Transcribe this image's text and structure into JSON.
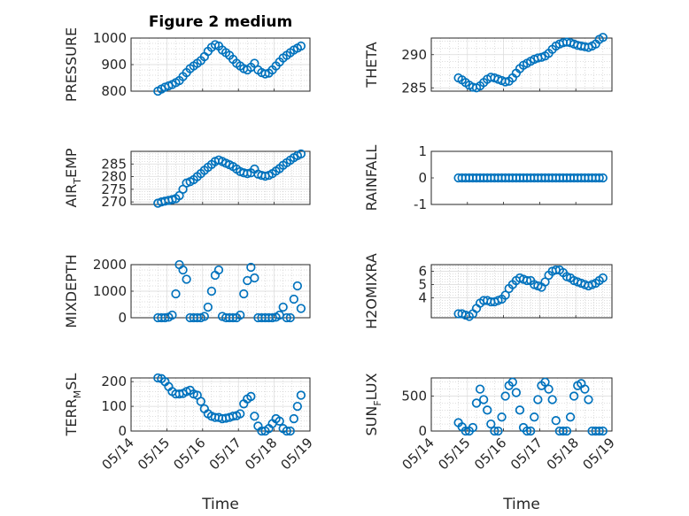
{
  "figure": {
    "title": "Figure 2 medium",
    "xlabel": "Time",
    "marker_color": "#0072BD"
  },
  "chart_data": [
    {
      "id": "pressure",
      "type": "scatter",
      "title": "Figure 2 medium",
      "ylabel": "PRESSURE",
      "xlabel": "",
      "ylim": [
        800,
        1000
      ],
      "yticks": [
        800,
        900,
        1000
      ],
      "xlim": [
        "05/14",
        "05/19"
      ],
      "xticks": [
        "05/14",
        "05/15",
        "05/16",
        "05/17",
        "05/18",
        "05/19"
      ],
      "show_xtick_labels": false,
      "grid": true,
      "x": [
        14.75,
        14.85,
        14.95,
        15.05,
        15.15,
        15.25,
        15.35,
        15.45,
        15.55,
        15.65,
        15.75,
        15.85,
        15.95,
        16.05,
        16.15,
        16.25,
        16.35,
        16.45,
        16.55,
        16.65,
        16.75,
        16.85,
        16.95,
        17.05,
        17.15,
        17.25,
        17.35,
        17.45,
        17.55,
        17.65,
        17.75,
        17.85,
        17.95,
        18.05,
        18.15,
        18.25,
        18.35,
        18.45,
        18.55,
        18.65,
        18.75
      ],
      "y": [
        800,
        808,
        815,
        820,
        825,
        832,
        840,
        855,
        870,
        885,
        895,
        905,
        915,
        930,
        950,
        965,
        975,
        970,
        955,
        945,
        935,
        920,
        905,
        895,
        885,
        880,
        890,
        905,
        880,
        870,
        865,
        868,
        880,
        895,
        910,
        925,
        935,
        945,
        955,
        962,
        970
      ]
    },
    {
      "id": "theta",
      "type": "scatter",
      "ylabel": "THETA",
      "xlabel": "",
      "ylim": [
        284.5,
        292.5
      ],
      "yticks": [
        285,
        290
      ],
      "xlim": [
        "05/14",
        "05/19"
      ],
      "xticks": [
        "05/14",
        "05/15",
        "05/16",
        "05/17",
        "05/18",
        "05/19"
      ],
      "show_xtick_labels": false,
      "grid": true,
      "x": [
        14.75,
        14.85,
        14.95,
        15.05,
        15.15,
        15.25,
        15.35,
        15.45,
        15.55,
        15.65,
        15.75,
        15.85,
        15.95,
        16.05,
        16.15,
        16.25,
        16.35,
        16.45,
        16.55,
        16.65,
        16.75,
        16.85,
        16.95,
        17.05,
        17.15,
        17.25,
        17.35,
        17.45,
        17.55,
        17.65,
        17.75,
        17.85,
        17.95,
        18.05,
        18.15,
        18.25,
        18.35,
        18.45,
        18.55,
        18.65,
        18.75
      ],
      "y": [
        286.5,
        286.2,
        285.8,
        285.4,
        285.1,
        285.0,
        285.3,
        285.8,
        286.3,
        286.6,
        286.5,
        286.3,
        286.1,
        285.9,
        286.0,
        286.5,
        287.2,
        287.9,
        288.4,
        288.7,
        289.0,
        289.3,
        289.5,
        289.6,
        289.8,
        290.2,
        290.8,
        291.3,
        291.6,
        291.8,
        291.9,
        291.8,
        291.6,
        291.4,
        291.3,
        291.2,
        291.1,
        291.3,
        291.6,
        292.3,
        292.6
      ]
    },
    {
      "id": "airtemp",
      "type": "scatter",
      "ylabel": "AIR_TEMP",
      "ylabel_main": "AIR",
      "ylabel_sub": "T",
      "ylabel_rest": "EMP",
      "xlabel": "",
      "ylim": [
        269,
        290
      ],
      "yticks": [
        270,
        275,
        280,
        285
      ],
      "xlim": [
        "05/14",
        "05/19"
      ],
      "xticks": [
        "05/14",
        "05/15",
        "05/16",
        "05/17",
        "05/18",
        "05/19"
      ],
      "show_xtick_labels": false,
      "grid": true,
      "x": [
        14.75,
        14.85,
        14.95,
        15.05,
        15.15,
        15.25,
        15.35,
        15.45,
        15.55,
        15.65,
        15.75,
        15.85,
        15.95,
        16.05,
        16.15,
        16.25,
        16.35,
        16.45,
        16.55,
        16.65,
        16.75,
        16.85,
        16.95,
        17.05,
        17.15,
        17.25,
        17.35,
        17.45,
        17.55,
        17.65,
        17.75,
        17.85,
        17.95,
        18.05,
        18.15,
        18.25,
        18.35,
        18.45,
        18.55,
        18.65,
        18.75
      ],
      "y": [
        269.5,
        270.0,
        270.3,
        270.6,
        270.9,
        271.3,
        272.5,
        275.0,
        277.5,
        278.0,
        278.8,
        280.0,
        281.2,
        282.5,
        283.7,
        284.8,
        286.0,
        286.6,
        286.0,
        285.3,
        284.7,
        284.0,
        283.0,
        282.0,
        281.5,
        281.2,
        281.5,
        283.0,
        281.0,
        280.5,
        280.2,
        280.5,
        281.2,
        282.2,
        283.2,
        284.5,
        285.5,
        286.5,
        287.5,
        288.3,
        289.0
      ]
    },
    {
      "id": "rainfall",
      "type": "scatter",
      "ylabel": "RAINFALL",
      "xlabel": "",
      "ylim": [
        -1,
        1
      ],
      "yticks": [
        -1,
        0,
        1
      ],
      "xlim": [
        "05/14",
        "05/19"
      ],
      "xticks": [
        "05/14",
        "05/15",
        "05/16",
        "05/17",
        "05/18",
        "05/19"
      ],
      "show_xtick_labels": false,
      "grid": false,
      "x": [
        14.75,
        14.85,
        14.95,
        15.05,
        15.15,
        15.25,
        15.35,
        15.45,
        15.55,
        15.65,
        15.75,
        15.85,
        15.95,
        16.05,
        16.15,
        16.25,
        16.35,
        16.45,
        16.55,
        16.65,
        16.75,
        16.85,
        16.95,
        17.05,
        17.15,
        17.25,
        17.35,
        17.45,
        17.55,
        17.65,
        17.75,
        17.85,
        17.95,
        18.05,
        18.15,
        18.25,
        18.35,
        18.45,
        18.55,
        18.65,
        18.75
      ],
      "y": [
        0,
        0,
        0,
        0,
        0,
        0,
        0,
        0,
        0,
        0,
        0,
        0,
        0,
        0,
        0,
        0,
        0,
        0,
        0,
        0,
        0,
        0,
        0,
        0,
        0,
        0,
        0,
        0,
        0,
        0,
        0,
        0,
        0,
        0,
        0,
        0,
        0,
        0,
        0,
        0,
        0
      ]
    },
    {
      "id": "mixdepth",
      "type": "scatter",
      "ylabel": "MIXDEPTH",
      "xlabel": "",
      "ylim": [
        0,
        2000
      ],
      "yticks": [
        0,
        1000,
        2000
      ],
      "xlim": [
        "05/14",
        "05/19"
      ],
      "xticks": [
        "05/14",
        "05/15",
        "05/16",
        "05/17",
        "05/18",
        "05/19"
      ],
      "show_xtick_labels": false,
      "grid": true,
      "x": [
        14.75,
        14.85,
        14.95,
        15.05,
        15.15,
        15.25,
        15.35,
        15.45,
        15.55,
        15.65,
        15.75,
        15.85,
        15.95,
        16.05,
        16.15,
        16.25,
        16.35,
        16.45,
        16.55,
        16.65,
        16.75,
        16.85,
        16.95,
        17.05,
        17.15,
        17.25,
        17.35,
        17.45,
        17.55,
        17.65,
        17.75,
        17.85,
        17.95,
        18.05,
        18.15,
        18.25,
        18.35,
        18.45,
        18.55,
        18.65,
        18.75
      ],
      "y": [
        0,
        0,
        0,
        20,
        100,
        900,
        2000,
        1800,
        1450,
        0,
        0,
        0,
        0,
        50,
        400,
        1000,
        1600,
        1800,
        50,
        0,
        0,
        0,
        0,
        100,
        900,
        1400,
        1900,
        1500,
        0,
        0,
        0,
        0,
        0,
        20,
        100,
        400,
        0,
        0,
        700,
        1200,
        350
      ]
    },
    {
      "id": "h2omixra",
      "type": "scatter",
      "ylabel": "H2OMIXRA",
      "xlabel": "",
      "ylim": [
        2.5,
        6.5
      ],
      "yticks": [
        4,
        5,
        6
      ],
      "xlim": [
        "05/14",
        "05/19"
      ],
      "xticks": [
        "05/14",
        "05/15",
        "05/16",
        "05/17",
        "05/18",
        "05/19"
      ],
      "show_xtick_labels": false,
      "grid": true,
      "x": [
        14.75,
        14.85,
        14.95,
        15.05,
        15.15,
        15.25,
        15.35,
        15.45,
        15.55,
        15.65,
        15.75,
        15.85,
        15.95,
        16.05,
        16.15,
        16.25,
        16.35,
        16.45,
        16.55,
        16.65,
        16.75,
        16.85,
        16.95,
        17.05,
        17.15,
        17.25,
        17.35,
        17.45,
        17.55,
        17.65,
        17.75,
        17.85,
        17.95,
        18.05,
        18.15,
        18.25,
        18.35,
        18.45,
        18.55,
        18.65,
        18.75
      ],
      "y": [
        2.8,
        2.8,
        2.7,
        2.6,
        2.8,
        3.2,
        3.6,
        3.8,
        3.8,
        3.7,
        3.7,
        3.8,
        3.9,
        4.2,
        4.7,
        5.0,
        5.3,
        5.5,
        5.4,
        5.3,
        5.3,
        5.0,
        4.9,
        4.8,
        5.2,
        5.7,
        6.0,
        6.1,
        6.1,
        5.9,
        5.6,
        5.5,
        5.3,
        5.2,
        5.1,
        5.0,
        4.9,
        5.0,
        5.1,
        5.3,
        5.5
      ]
    },
    {
      "id": "terrmsl",
      "type": "scatter",
      "ylabel": "TERR_MSL",
      "ylabel_main": "TERR",
      "ylabel_sub": "M",
      "ylabel_rest": "SL",
      "xlabel": "Time",
      "ylim": [
        0,
        215
      ],
      "yticks": [
        0,
        100,
        200
      ],
      "xlim": [
        "05/14",
        "05/19"
      ],
      "xticks": [
        "05/14",
        "05/15",
        "05/16",
        "05/17",
        "05/18",
        "05/19"
      ],
      "show_xtick_labels": true,
      "grid": true,
      "x": [
        14.75,
        14.85,
        14.95,
        15.05,
        15.15,
        15.25,
        15.35,
        15.45,
        15.55,
        15.65,
        15.75,
        15.85,
        15.95,
        16.05,
        16.15,
        16.25,
        16.35,
        16.45,
        16.55,
        16.65,
        16.75,
        16.85,
        16.95,
        17.05,
        17.15,
        17.25,
        17.35,
        17.45,
        17.55,
        17.65,
        17.75,
        17.85,
        17.95,
        18.05,
        18.15,
        18.25,
        18.35,
        18.45,
        18.55,
        18.65,
        18.75
      ],
      "y": [
        215,
        212,
        200,
        180,
        160,
        150,
        150,
        152,
        160,
        165,
        150,
        145,
        120,
        90,
        70,
        60,
        55,
        55,
        50,
        52,
        55,
        60,
        62,
        70,
        110,
        130,
        140,
        60,
        20,
        0,
        0,
        10,
        30,
        50,
        40,
        10,
        0,
        0,
        50,
        100,
        145
      ]
    },
    {
      "id": "sunflux",
      "type": "scatter",
      "ylabel": "SUN_FLUX",
      "ylabel_main": "SUN",
      "ylabel_sub": "F",
      "ylabel_rest": "LUX",
      "xlabel": "Time",
      "ylim": [
        0,
        760
      ],
      "yticks": [
        0,
        500
      ],
      "xlim": [
        "05/14",
        "05/19"
      ],
      "xticks": [
        "05/14",
        "05/15",
        "05/16",
        "05/17",
        "05/18",
        "05/19"
      ],
      "show_xtick_labels": true,
      "grid": true,
      "x": [
        14.75,
        14.85,
        14.95,
        15.05,
        15.15,
        15.25,
        15.35,
        15.45,
        15.55,
        15.65,
        15.75,
        15.85,
        15.95,
        16.05,
        16.15,
        16.25,
        16.35,
        16.45,
        16.55,
        16.65,
        16.75,
        16.85,
        16.95,
        17.05,
        17.15,
        17.25,
        17.35,
        17.45,
        17.55,
        17.65,
        17.75,
        17.85,
        17.95,
        18.05,
        18.15,
        18.25,
        18.35,
        18.45,
        18.55,
        18.65,
        18.75
      ],
      "y": [
        120,
        60,
        0,
        0,
        50,
        400,
        600,
        450,
        300,
        100,
        0,
        0,
        200,
        500,
        650,
        700,
        550,
        300,
        50,
        0,
        0,
        200,
        450,
        650,
        700,
        600,
        450,
        150,
        0,
        0,
        0,
        200,
        500,
        650,
        680,
        600,
        450,
        0,
        0,
        0,
        0
      ]
    }
  ]
}
